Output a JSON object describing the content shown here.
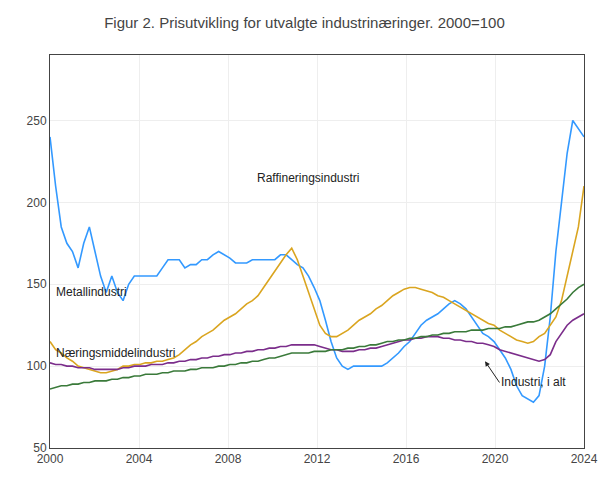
{
  "chart_data": {
    "type": "line",
    "title": "Figur 2. Prisutvikling for utvalgte industrinæringer. 2000=100",
    "x": [
      2000,
      2000.2526,
      2000.5053,
      2000.7579,
      2001.0105,
      2001.2632,
      2001.5158,
      2001.7684,
      2002.0211,
      2002.2737,
      2002.5263,
      2002.7789,
      2003.0316,
      2003.2842,
      2003.5368,
      2003.7895,
      2004.0421,
      2004.2947,
      2004.5474,
      2004.8,
      2005.0526,
      2005.3053,
      2005.5579,
      2005.8105,
      2006.0632,
      2006.3158,
      2006.5684,
      2006.8211,
      2007.0737,
      2007.3263,
      2007.5789,
      2007.8316,
      2008.0842,
      2008.3368,
      2008.5895,
      2008.8421,
      2009.0947,
      2009.3474,
      2009.6,
      2009.8526,
      2010.1053,
      2010.3579,
      2010.6105,
      2010.8632,
      2011.1158,
      2011.3684,
      2011.6211,
      2011.8737,
      2012.1263,
      2012.3789,
      2012.6316,
      2012.8842,
      2013.1368,
      2013.3895,
      2013.6421,
      2013.8947,
      2014.1474,
      2014.4,
      2014.6526,
      2014.9053,
      2015.1579,
      2015.4105,
      2015.6632,
      2015.9158,
      2016.1684,
      2016.4211,
      2016.6737,
      2016.9263,
      2017.1789,
      2017.4316,
      2017.6842,
      2017.9368,
      2018.1895,
      2018.4421,
      2018.6947,
      2018.9474,
      2019.2,
      2019.4526,
      2019.7053,
      2019.9579,
      2020.2105,
      2020.4632,
      2020.7158,
      2020.9684,
      2021.2211,
      2021.4737,
      2021.7263,
      2021.9789,
      2022.2316,
      2022.4842,
      2022.7368,
      2022.9895,
      2023.2421,
      2023.4947,
      2023.7474,
      2024
    ],
    "series": [
      {
        "name": "Raffineringsindustri",
        "color": "#3399FF",
        "values": [
          240,
          210,
          185,
          175,
          170,
          160,
          175,
          185,
          170,
          155,
          145,
          155,
          145,
          140,
          150,
          155,
          155,
          155,
          155,
          155,
          160,
          165,
          165,
          165,
          160,
          162,
          162,
          165,
          165,
          168,
          170,
          168,
          166,
          163,
          163,
          163,
          165,
          165,
          165,
          165,
          165,
          168,
          168,
          165,
          162,
          160,
          155,
          148,
          140,
          128,
          115,
          105,
          100,
          98,
          100,
          100,
          100,
          100,
          100,
          100,
          102,
          105,
          108,
          112,
          115,
          120,
          125,
          128,
          130,
          132,
          135,
          138,
          140,
          138,
          135,
          130,
          125,
          120,
          118,
          115,
          110,
          105,
          98,
          88,
          82,
          80,
          78,
          82,
          100,
          130,
          170,
          200,
          230,
          250,
          245,
          240
        ]
      },
      {
        "name": "Metallindustri",
        "color": "#DAA520",
        "values": [
          115,
          110,
          108,
          105,
          103,
          100,
          99,
          98,
          97,
          96,
          96,
          97,
          98,
          100,
          100,
          101,
          101,
          102,
          102,
          103,
          103,
          104,
          105,
          107,
          110,
          113,
          115,
          118,
          120,
          122,
          125,
          128,
          130,
          132,
          135,
          138,
          140,
          143,
          148,
          153,
          158,
          163,
          168,
          172,
          165,
          155,
          145,
          135,
          125,
          120,
          118,
          118,
          120,
          122,
          125,
          128,
          130,
          132,
          135,
          137,
          140,
          143,
          145,
          147,
          148,
          148,
          147,
          146,
          145,
          143,
          142,
          140,
          138,
          136,
          134,
          132,
          130,
          128,
          126,
          125,
          122,
          120,
          118,
          116,
          115,
          114,
          115,
          118,
          120,
          125,
          130,
          140,
          155,
          170,
          185,
          210
        ]
      },
      {
        "name": "Industri, i alt",
        "color": "#7B2D8B",
        "values": [
          102,
          101,
          101,
          100,
          100,
          99,
          99,
          99,
          98,
          98,
          98,
          98,
          98,
          99,
          99,
          100,
          100,
          100,
          101,
          101,
          101,
          102,
          102,
          103,
          103,
          104,
          104,
          105,
          105,
          106,
          106,
          107,
          107,
          108,
          108,
          109,
          109,
          110,
          110,
          111,
          111,
          112,
          112,
          113,
          113,
          113,
          113,
          113,
          112,
          111,
          110,
          110,
          109,
          109,
          109,
          110,
          110,
          111,
          111,
          112,
          113,
          114,
          115,
          116,
          116,
          117,
          117,
          118,
          118,
          118,
          117,
          117,
          116,
          116,
          115,
          115,
          114,
          114,
          113,
          112,
          110,
          109,
          108,
          107,
          106,
          105,
          104,
          103,
          104,
          107,
          115,
          120,
          125,
          128,
          130,
          132
        ]
      },
      {
        "name": "Næringsmiddelindustri",
        "color": "#3A7A3A",
        "values": [
          86,
          87,
          88,
          88,
          89,
          89,
          90,
          90,
          91,
          91,
          91,
          92,
          92,
          93,
          93,
          94,
          94,
          95,
          95,
          95,
          96,
          96,
          97,
          97,
          97,
          98,
          98,
          99,
          99,
          99,
          100,
          100,
          101,
          101,
          102,
          102,
          103,
          103,
          104,
          105,
          105,
          106,
          107,
          108,
          108,
          108,
          108,
          109,
          109,
          109,
          110,
          110,
          110,
          111,
          111,
          112,
          112,
          113,
          113,
          114,
          115,
          115,
          116,
          116,
          117,
          117,
          118,
          118,
          119,
          119,
          120,
          120,
          121,
          121,
          121,
          122,
          122,
          122,
          123,
          123,
          123,
          124,
          124,
          125,
          126,
          127,
          127,
          128,
          130,
          132,
          135,
          138,
          141,
          145,
          148,
          150
        ]
      }
    ],
    "xlim": [
      2000,
      2024
    ],
    "xticks": [
      2000,
      2004,
      2008,
      2012,
      2016,
      2020,
      2024
    ],
    "ylim": [
      50,
      290
    ],
    "yticks": [
      50,
      100,
      150,
      200,
      250
    ],
    "grid": true
  }
}
